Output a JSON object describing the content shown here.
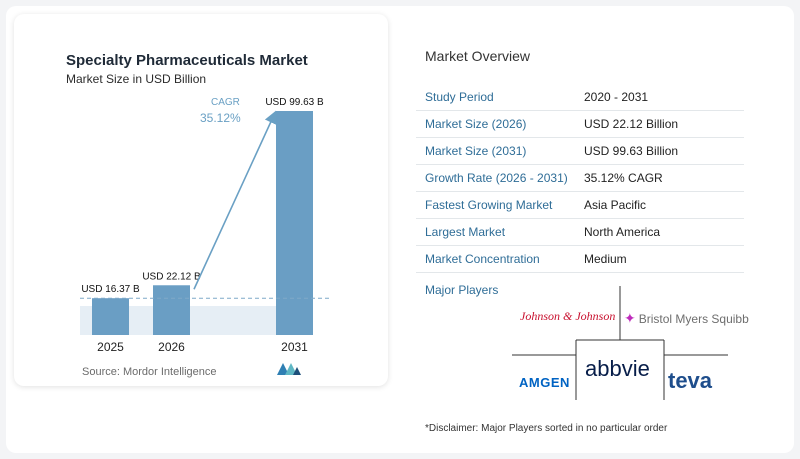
{
  "chart_data": {
    "type": "bar",
    "title": "Specialty Pharmaceuticals Market",
    "subtitle": "Market Size in USD Billion",
    "categories": [
      "2025",
      "2026",
      "2031"
    ],
    "values": [
      16.37,
      22.12,
      99.63
    ],
    "data_labels": [
      "USD 16.37 B",
      "USD 22.12 B",
      "USD 99.63 B"
    ],
    "annotation": {
      "label": "CAGR",
      "value": "35.12%"
    },
    "bar_color": "#6a9ec4",
    "gridlines": false
  },
  "source": "Source:  Mordor Intelligence",
  "overview": {
    "title": "Market Overview",
    "rows": [
      {
        "label": "Study Period",
        "value": "2020 - 2031"
      },
      {
        "label": "Market Size (2026)",
        "value": "USD 22.12 Billion"
      },
      {
        "label": "Market Size (2031)",
        "value": "USD 99.63 Billion"
      },
      {
        "label": "Growth Rate (2026 - 2031)",
        "value": "35.12% CAGR"
      },
      {
        "label": "Fastest Growing Market",
        "value": "Asia Pacific"
      },
      {
        "label": "Largest Market",
        "value": "North America"
      },
      {
        "label": "Market Concentration",
        "value": "Medium"
      }
    ]
  },
  "players": {
    "title": "Major Players",
    "logos": [
      "Johnson & Johnson",
      "Bristol Myers Squibb",
      "AMGEN",
      "abbvie",
      "teva"
    ]
  },
  "disclaimer": "*Disclaimer: Major Players sorted in no particular order"
}
